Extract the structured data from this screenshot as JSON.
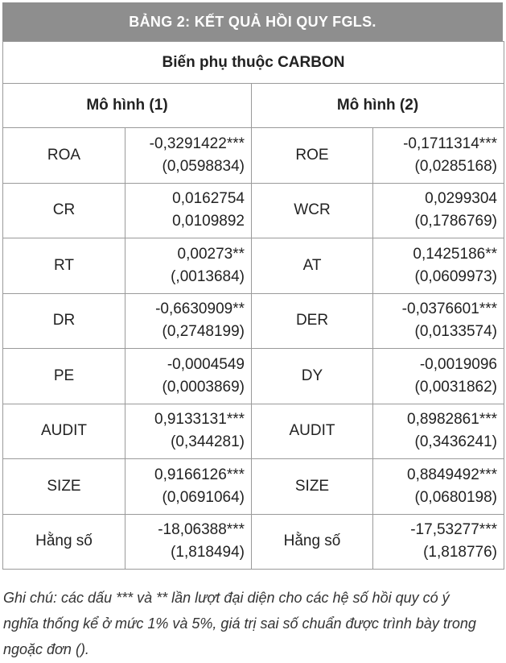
{
  "header": {
    "title": "BẢNG 2: KẾT QUẢ HỒI QUY FGLS."
  },
  "table": {
    "dependent": "Biến phụ thuộc CARBON",
    "models": [
      "Mô hình (1)",
      "Mô hình (2)"
    ],
    "rows": [
      [
        "ROA",
        "-0,3291422***",
        "(0,0598834)",
        "ROE",
        "-0,1711314***",
        "(0,0285168)"
      ],
      [
        "CR",
        "0,0162754",
        "0,0109892",
        "WCR",
        "0,0299304",
        "(0,1786769)"
      ],
      [
        "RT",
        "0,00273**",
        "(,0013684)",
        "AT",
        "0,1425186**",
        "(0,0609973)"
      ],
      [
        "DR",
        "-0,6630909**",
        "(0,2748199)",
        "DER",
        "-0,0376601***",
        "(0,0133574)"
      ],
      [
        "PE",
        "-0,0004549",
        "(0,0003869)",
        "DY",
        "-0,0019096",
        "(0,0031862)"
      ],
      [
        "AUDIT",
        "0,9133131***",
        "(0,344281)",
        "AUDIT",
        "0,8982861***",
        "(0,3436241)"
      ],
      [
        "SIZE",
        "0,9166126***",
        "(0,0691064)",
        "SIZE",
        "0,8849492***",
        "(0,0680198)"
      ],
      [
        "Hằng số",
        "-18,06388***",
        "(1,818494)",
        "Hằng số",
        "-17,53277***",
        "(1,818776)"
      ]
    ]
  },
  "note": "Ghi chú: các dấu *** và ** lần lượt đại diện cho các hệ số hồi quy có ý nghĩa thống kể ở mức 1% và 5%, giá trị sai số chuẩn được trình bày trong ngoặc đơn ()."
}
